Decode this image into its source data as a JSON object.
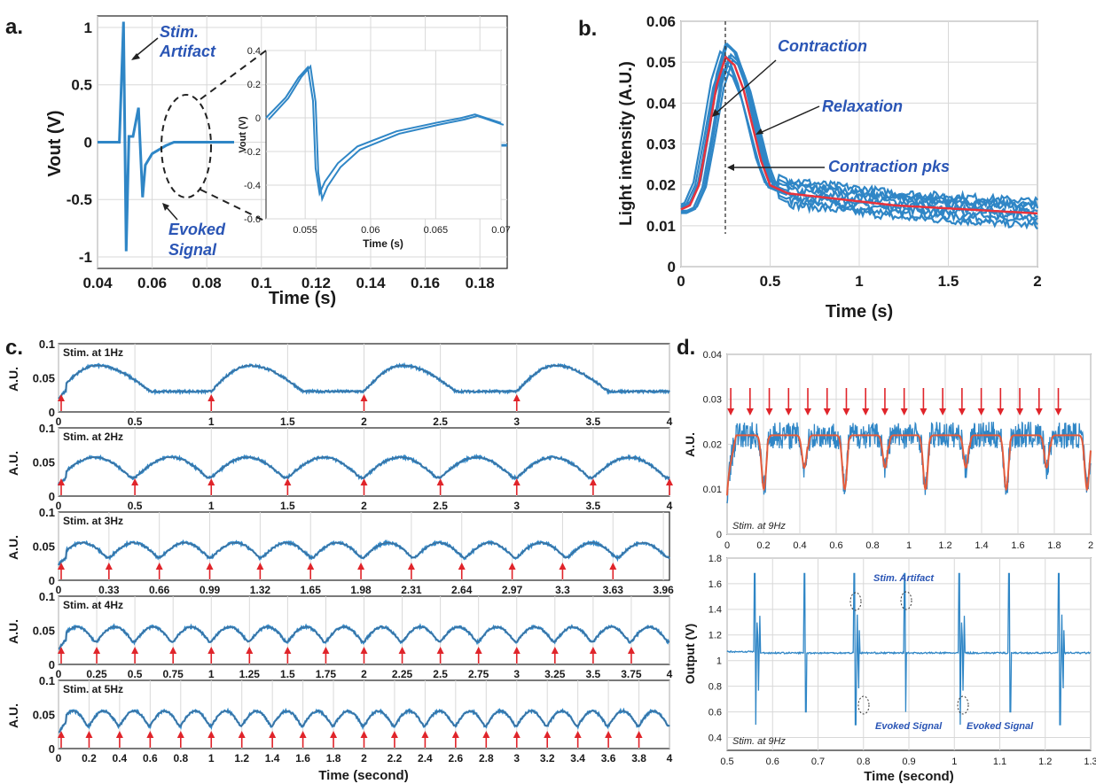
{
  "colors": {
    "trace": "#2f86c6",
    "fit": "#e35b3b",
    "mean": "#e8323c",
    "arrow": "#e0242a",
    "annotation": "#2a55b5"
  },
  "chart_data": [
    {
      "panel": "a.",
      "type": "line",
      "xlabel": "Time (s)",
      "ylabel": "Vout (V)",
      "xlim": [
        0.04,
        0.19
      ],
      "ylim": [
        -1.1,
        1.1
      ],
      "xticks": [
        "0.04",
        "0.06",
        "0.08",
        "0.1",
        "0.12",
        "0.14",
        "0.16",
        "0.18"
      ],
      "yticks": [
        "1",
        "0.5",
        "0",
        "-0.5",
        "-1"
      ],
      "annotations": [
        {
          "text": "Stim.",
          "line2": "Artifact"
        },
        {
          "text": "Evoked",
          "line2": "Signal"
        }
      ],
      "inset": {
        "xlabel": "Time (s)",
        "ylabel": "Vout (V)",
        "xlim": [
          0.052,
          0.07
        ],
        "ylim": [
          -0.6,
          0.4
        ],
        "xticks": [
          "0.055",
          "0.06",
          "0.065",
          "0.07"
        ],
        "yticks": [
          "0.4",
          "0.2",
          "0",
          "-0.2",
          "-0.4",
          "-0.6"
        ]
      },
      "series": [
        {
          "x": [
            0.04,
            0.048,
            0.0495,
            0.0505,
            0.0515,
            0.053,
            0.055,
            0.0565,
            0.0575,
            0.06,
            0.065,
            0.068,
            0.09
          ],
          "y": [
            0,
            0,
            1.05,
            -0.95,
            0.05,
            0.05,
            0.3,
            -0.48,
            -0.2,
            -0.1,
            -0.03,
            0,
            0
          ]
        }
      ]
    },
    {
      "panel": "b.",
      "type": "line",
      "xlabel": "Time (s)",
      "ylabel": "Light intensity (A.U.)",
      "xlim": [
        0,
        2
      ],
      "ylim": [
        0,
        0.06
      ],
      "xticks": [
        "0",
        "0.5",
        "1",
        "1.5",
        "2"
      ],
      "yticks": [
        "0.06",
        "0.05",
        "0.04",
        "0.03",
        "0.02",
        "0.01",
        "0"
      ],
      "annotations": [
        {
          "text": "Contraction"
        },
        {
          "text": "Relaxation"
        },
        {
          "text": "Contraction pks"
        }
      ],
      "series": [
        {
          "x": [
            0,
            0.05,
            0.1,
            0.15,
            0.2,
            0.25,
            0.3,
            0.35,
            0.4,
            0.45,
            0.5,
            0.6,
            0.8,
            1.0,
            1.2,
            1.4,
            1.6,
            1.8,
            2.0
          ],
          "y": [
            0.014,
            0.015,
            0.02,
            0.032,
            0.045,
            0.052,
            0.05,
            0.044,
            0.035,
            0.026,
            0.02,
            0.018,
            0.017,
            0.016,
            0.015,
            0.0145,
            0.014,
            0.0135,
            0.013
          ]
        }
      ]
    },
    {
      "panel": "c.",
      "type": "line",
      "xlabel": "Time (second)",
      "ylabel": "A.U.",
      "subplots": [
        {
          "title": "Stim. at 1Hz",
          "freq": 1,
          "xticks": [
            "0",
            "0.5",
            "1",
            "1.5",
            "2",
            "2.5",
            "3",
            "3.5",
            "4"
          ],
          "xvals": [
            0,
            0.5,
            1,
            1.5,
            2,
            2.5,
            3,
            3.5,
            4
          ]
        },
        {
          "title": "Stim. at 2Hz",
          "freq": 2,
          "xticks": [
            "0",
            "0.5",
            "1",
            "1.5",
            "2",
            "2.5",
            "3",
            "3.5",
            "4"
          ],
          "xvals": [
            0,
            0.5,
            1,
            1.5,
            2,
            2.5,
            3,
            3.5,
            4
          ]
        },
        {
          "title": "Stim. at 3Hz",
          "freq": 3,
          "xticks": [
            "0",
            "0.33",
            "0.66",
            "0.99",
            "1.32",
            "1.65",
            "1.98",
            "2.31",
            "2.64",
            "2.97",
            "3.3",
            "3.63",
            "3.96"
          ],
          "xvals": [
            0,
            0.33,
            0.66,
            0.99,
            1.32,
            1.65,
            1.98,
            2.31,
            2.64,
            2.97,
            3.3,
            3.63,
            3.96
          ]
        },
        {
          "title": "Stim. at 4Hz",
          "freq": 4,
          "xticks": [
            "0",
            "0.25",
            "0.5",
            "0.75",
            "1",
            "1.25",
            "1.5",
            "1.75",
            "2",
            "2.25",
            "2.5",
            "2.75",
            "3",
            "3.25",
            "3.5",
            "3.75",
            "4"
          ],
          "xvals": [
            0,
            0.25,
            0.5,
            0.75,
            1,
            1.25,
            1.5,
            1.75,
            2,
            2.25,
            2.5,
            2.75,
            3,
            3.25,
            3.5,
            3.75,
            4
          ]
        },
        {
          "title": "Stim. at 5Hz",
          "freq": 5,
          "xticks": [
            "0",
            "0.2",
            "0.4",
            "0.6",
            "0.8",
            "1",
            "1.2",
            "1.4",
            "1.6",
            "1.8",
            "2",
            "2.2",
            "2.4",
            "2.6",
            "2.8",
            "3",
            "3.2",
            "3.4",
            "3.6",
            "3.8",
            "4"
          ],
          "xvals": [
            0,
            0.2,
            0.4,
            0.6,
            0.8,
            1,
            1.2,
            1.4,
            1.6,
            1.8,
            2,
            2.2,
            2.4,
            2.6,
            2.8,
            3,
            3.2,
            3.4,
            3.6,
            3.8,
            4
          ]
        }
      ],
      "xlim": [
        0,
        4
      ],
      "ylim": [
        0,
        0.1
      ],
      "yticks": [
        "0.1",
        "0.05",
        "0"
      ]
    },
    {
      "panel": "d.",
      "type": "line",
      "top": {
        "ylabel": "A.U.",
        "title": "Stim. at 9Hz",
        "xlim": [
          0,
          2
        ],
        "ylim": [
          0,
          0.04
        ],
        "xticks": [
          "0",
          "0.2",
          "0.4",
          "0.6",
          "0.8",
          "1",
          "1.2",
          "1.4",
          "1.6",
          "1.8",
          "2"
        ],
        "yticks": [
          "0.04",
          "0.03",
          "0.02",
          "0.01",
          "0"
        ]
      },
      "bottom": {
        "xlabel": "Time (second)",
        "ylabel": "Output (V)",
        "title": "Stim. at 9Hz",
        "xlim": [
          0.5,
          1.3
        ],
        "ylim": [
          0.3,
          1.8
        ],
        "xticks": [
          "0.5",
          "0.6",
          "0.7",
          "0.8",
          "0.9",
          "1",
          "1.1",
          "1.2",
          "1.3"
        ],
        "yticks": [
          "1.8",
          "1.6",
          "1.4",
          "1.2",
          "1",
          "0.8",
          "0.6",
          "0.4"
        ],
        "annotations": [
          {
            "text": "Stim. Artifact"
          },
          {
            "text": "Evoked Signal"
          },
          {
            "text": "Evoked Signal"
          }
        ],
        "spikes_x": [
          0.56,
          0.67,
          0.78,
          0.89,
          1.01,
          1.12,
          1.23
        ]
      }
    }
  ]
}
